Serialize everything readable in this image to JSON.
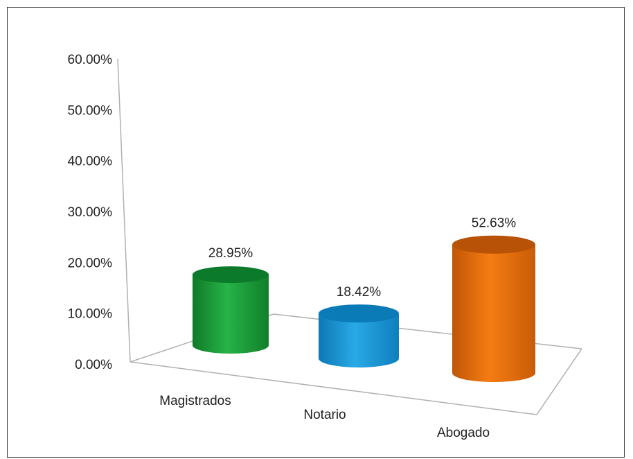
{
  "chart_data": {
    "type": "bar",
    "categories": [
      "Magistrados",
      "Notario",
      "Abogado"
    ],
    "values": [
      28.95,
      18.42,
      52.63
    ],
    "value_labels": [
      "28.95%",
      "18.42%",
      "52.63%"
    ],
    "ytick_labels": [
      "0.00%",
      "10.00%",
      "20.00%",
      "30.00%",
      "40.00%",
      "50.00%",
      "60.00%"
    ],
    "ylim": [
      0,
      60
    ],
    "grid": false,
    "style": "3d-cylinder",
    "colors": [
      "#1fa33a",
      "#1b9ad6",
      "#ec6c0c"
    ]
  }
}
